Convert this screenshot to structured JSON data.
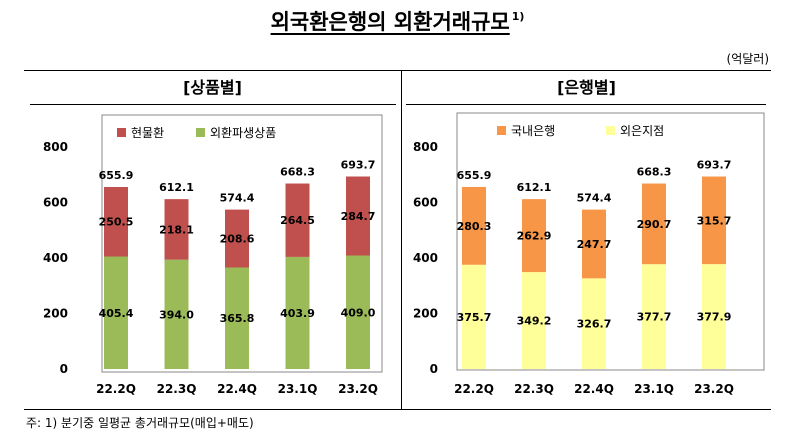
{
  "title": "외국환은행의 외환거래규모",
  "title_footnote_mark": "1)",
  "unit": "(억달러)",
  "footnote": "주: 1) 분기중 일평균 총거래규모(매입+매도)",
  "chart_data": [
    {
      "type": "bar",
      "stacked": true,
      "panel_title": "[상품별]",
      "categories": [
        "22.2Q",
        "22.3Q",
        "22.4Q",
        "23.1Q",
        "23.2Q"
      ],
      "series": [
        {
          "name": "외환파생상품",
          "values": [
            405.4,
            394.0,
            365.8,
            403.9,
            409.0
          ],
          "labels": [
            "405.4",
            "394.0",
            "365.8",
            "403.9",
            "409.0"
          ],
          "color": "#9bbb59"
        },
        {
          "name": "현물환",
          "values": [
            250.5,
            218.1,
            208.6,
            264.5,
            284.7
          ],
          "labels": [
            "250.5",
            "218.1",
            "208.6",
            "264.5",
            "284.7"
          ],
          "color": "#c0504d"
        }
      ],
      "legend_order": [
        "현물환",
        "외환파생상품"
      ],
      "totals": [
        "655.9",
        "612.1",
        "574.4",
        "668.3",
        "693.7"
      ],
      "yticks": [
        "0",
        "200",
        "400",
        "600",
        "800"
      ],
      "ylim": [
        0,
        800
      ],
      "legend_position": "top"
    },
    {
      "type": "bar",
      "stacked": true,
      "panel_title": "[은행별]",
      "categories": [
        "22.2Q",
        "22.3Q",
        "22.4Q",
        "23.1Q",
        "23.2Q"
      ],
      "series": [
        {
          "name": "외은지점",
          "values": [
            375.7,
            349.2,
            326.7,
            377.7,
            377.9
          ],
          "labels": [
            "375.7",
            "349.2",
            "326.7",
            "377.7",
            "377.9"
          ],
          "color": "#ffff99"
        },
        {
          "name": "국내은행",
          "values": [
            280.3,
            262.9,
            247.7,
            290.7,
            315.7
          ],
          "labels": [
            "280.3",
            "262.9",
            "247.7",
            "290.7",
            "315.7"
          ],
          "color": "#f79646"
        }
      ],
      "legend_order": [
        "국내은행",
        "외은지점"
      ],
      "totals": [
        "655.9",
        "612.1",
        "574.4",
        "668.3",
        "693.7"
      ],
      "yticks": [
        "0",
        "200",
        "400",
        "600",
        "800"
      ],
      "ylim": [
        0,
        800
      ],
      "legend_position": "top"
    }
  ]
}
